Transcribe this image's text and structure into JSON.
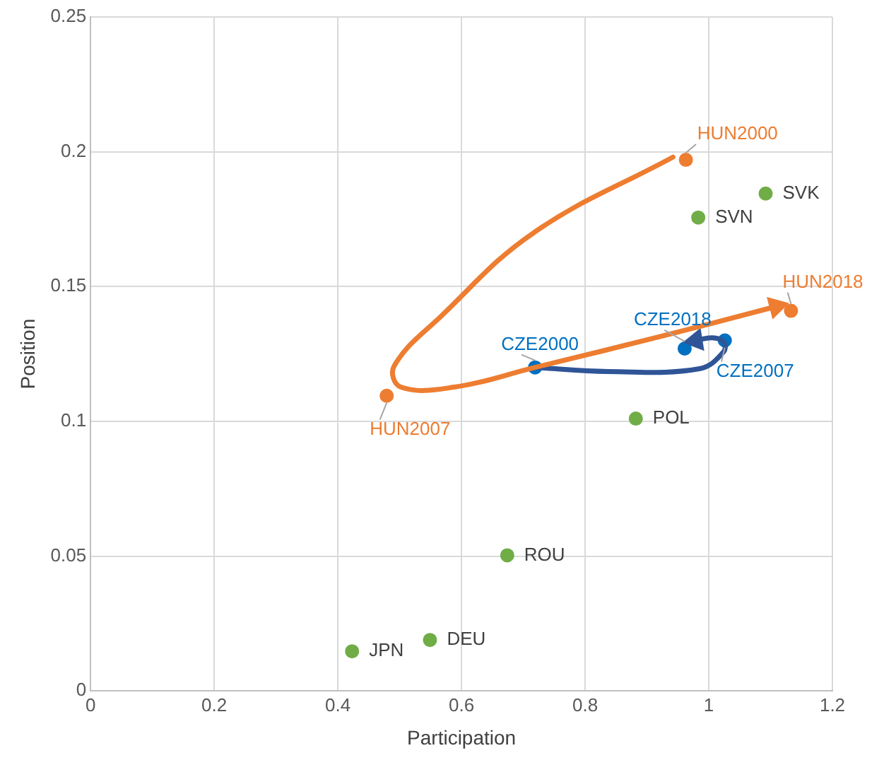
{
  "chart_data": {
    "type": "scatter",
    "xlabel": "Participation",
    "ylabel": "Position",
    "xlim": [
      0,
      1.2
    ],
    "xticks": [
      0,
      0.2,
      0.4,
      0.6,
      0.8,
      1,
      1.2
    ],
    "ylim": [
      0,
      0.25
    ],
    "yticks": [
      0,
      0.05,
      0.1,
      0.15,
      0.2,
      0.25
    ],
    "grid": true,
    "legend": false,
    "marker": "circle",
    "series": [
      {
        "type": "line",
        "marker": "none",
        "color": "#ed7d31",
        "x": [
          0.942,
          0.717,
          0.567,
          0.491,
          0.502,
          0.588,
          0.719,
          0.931,
          1.109
        ],
        "values": [
          0.198,
          0.17,
          0.139,
          0.1205,
          0.1127,
          0.1127,
          0.12,
          0.132,
          0.1426
        ]
      },
      {
        "type": "line",
        "marker": "none",
        "color": "#2f5597",
        "x": [
          0.719,
          0.837,
          0.985,
          1.024,
          1.024,
          1.006,
          0.979
        ],
        "values": [
          0.12,
          0.1185,
          0.1195,
          0.1258,
          0.1295,
          0.131,
          0.13
        ]
      },
      {
        "color": "#ed7d31",
        "x": [
          0.963,
          0.479,
          1.133
        ],
        "values": [
          0.197,
          0.1095,
          0.141
        ]
      },
      {
        "color": "#0070c0",
        "x": [
          0.719,
          1.026,
          0.961
        ],
        "values": [
          0.12,
          0.13,
          0.127
        ]
      },
      {
        "color": "#70ad47",
        "x": [
          1.092,
          0.983,
          0.882,
          0.674,
          0.549,
          0.423
        ],
        "values": [
          0.1845,
          0.1756,
          0.101,
          0.0503,
          0.0189,
          0.0147
        ]
      }
    ],
    "annotations": [
      {
        "text": "HUN2000",
        "x": 0.963,
        "y": 0.197
      },
      {
        "text": "HUN2007",
        "x": 0.479,
        "y": 0.1095
      },
      {
        "text": "HUN2018",
        "x": 1.133,
        "y": 0.141
      },
      {
        "text": "CZE2000",
        "x": 0.719,
        "y": 0.12
      },
      {
        "text": "CZE2007",
        "x": 1.026,
        "y": 0.13
      },
      {
        "text": "CZE2018",
        "x": 0.961,
        "y": 0.127
      },
      {
        "text": "SVK",
        "x": 1.092,
        "y": 0.1845
      },
      {
        "text": "SVN",
        "x": 0.983,
        "y": 0.1756
      },
      {
        "text": "POL",
        "x": 0.882,
        "y": 0.101
      },
      {
        "text": "ROU",
        "x": 0.674,
        "y": 0.0503
      },
      {
        "text": "DEU",
        "x": 0.549,
        "y": 0.0189
      },
      {
        "text": "JPN",
        "x": 0.423,
        "y": 0.0147
      }
    ]
  }
}
